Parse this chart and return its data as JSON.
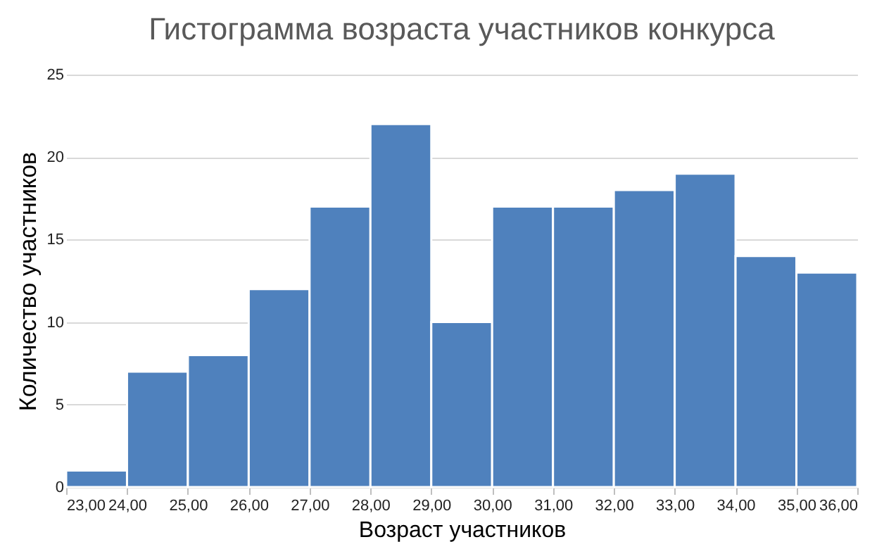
{
  "chart_data": {
    "type": "histogram",
    "title": "Гистограмма возраста участников конкурса",
    "xlabel": "Возраст участников",
    "ylabel": "Количество участников",
    "bins": [
      23,
      24,
      25,
      26,
      27,
      28,
      29,
      30,
      31,
      32,
      33,
      34,
      35,
      36
    ],
    "values": [
      1,
      7,
      8,
      12,
      17,
      22,
      10,
      17,
      17,
      18,
      19,
      14,
      13
    ],
    "color": "#4f81bd",
    "xlim": [
      23,
      36
    ],
    "xticks": [
      {
        "value": 23,
        "label": "23,00"
      },
      {
        "value": 24,
        "label": "24,00"
      },
      {
        "value": 25,
        "label": "25,00"
      },
      {
        "value": 26,
        "label": "26,00"
      },
      {
        "value": 27,
        "label": "27,00"
      },
      {
        "value": 28,
        "label": "28,00"
      },
      {
        "value": 29,
        "label": "29,00"
      },
      {
        "value": 30,
        "label": "30,00"
      },
      {
        "value": 31,
        "label": "31,00"
      },
      {
        "value": 32,
        "label": "32,00"
      },
      {
        "value": 33,
        "label": "33,00"
      },
      {
        "value": 34,
        "label": "34,00"
      },
      {
        "value": 35,
        "label": "35,00"
      },
      {
        "value": 36,
        "label": "36,00"
      }
    ],
    "ylim": [
      0,
      25
    ],
    "yticks": [
      0,
      5,
      10,
      15,
      20,
      25
    ],
    "grid": "y"
  }
}
